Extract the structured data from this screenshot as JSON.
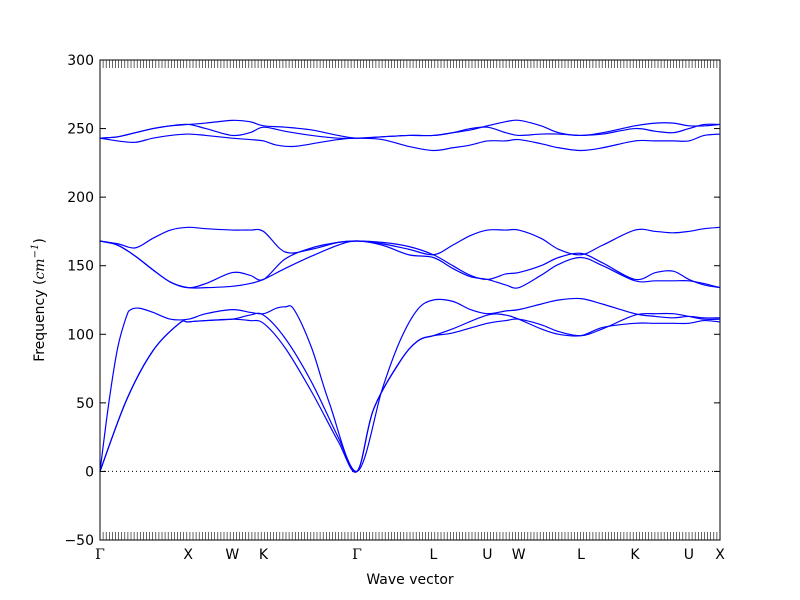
{
  "chart_data": {
    "type": "line",
    "title": "",
    "xlabel": "Wave vector",
    "ylabel": "Frequency (cm⁻¹)",
    "ylabel_main": "Frequency (",
    "ylabel_unit": "cm",
    "ylabel_exp": "−1",
    "ylabel_close": ")",
    "ylim": [
      -50,
      300
    ],
    "yticks": [
      -50,
      0,
      50,
      100,
      150,
      200,
      250,
      300
    ],
    "ytick_labels": [
      "−50",
      "0",
      "50",
      "100",
      "150",
      "200",
      "250",
      "300"
    ],
    "zero_line": true,
    "line_color": "#0000ff",
    "hsym_points": [
      {
        "label": "Γ",
        "x": 0.0
      },
      {
        "label": "X",
        "x": 1.0
      },
      {
        "label": "W",
        "x": 1.5
      },
      {
        "label": "K",
        "x": 1.854
      },
      {
        "label": "Γ",
        "x": 2.914
      },
      {
        "label": "L",
        "x": 3.78
      },
      {
        "label": "U",
        "x": 4.393
      },
      {
        "label": "W",
        "x": 4.747
      },
      {
        "label": "L",
        "x": 5.454
      },
      {
        "label": "K",
        "x": 6.066
      },
      {
        "label": "U",
        "x": 6.677
      },
      {
        "label": "X",
        "x": 7.03
      }
    ],
    "series": [
      {
        "values": [
          [
            0,
            0
          ],
          [
            0.3,
            52
          ],
          [
            0.6,
            88
          ],
          [
            0.9,
            108
          ],
          [
            1.0,
            109
          ],
          [
            1.2,
            110
          ],
          [
            1.5,
            111
          ],
          [
            1.7,
            110
          ],
          [
            1.854,
            108
          ],
          [
            2.1,
            90
          ],
          [
            2.4,
            58
          ],
          [
            2.7,
            22
          ],
          [
            2.914,
            0
          ],
          [
            3.1,
            45
          ],
          [
            3.4,
            80
          ],
          [
            3.6,
            95
          ],
          [
            3.78,
            99
          ],
          [
            4.0,
            101
          ],
          [
            4.393,
            108
          ],
          [
            4.6,
            110
          ],
          [
            4.747,
            111
          ],
          [
            5.0,
            107
          ],
          [
            5.2,
            102
          ],
          [
            5.454,
            99
          ],
          [
            5.7,
            104
          ],
          [
            6.066,
            114
          ],
          [
            6.3,
            115
          ],
          [
            6.5,
            115
          ],
          [
            6.677,
            113
          ],
          [
            6.85,
            111
          ],
          [
            7.03,
            111
          ]
        ]
      },
      {
        "values": [
          [
            0,
            0
          ],
          [
            0.3,
            52
          ],
          [
            0.6,
            88
          ],
          [
            0.9,
            108
          ],
          [
            1.0,
            109
          ],
          [
            1.2,
            110
          ],
          [
            1.5,
            111
          ],
          [
            1.7,
            114
          ],
          [
            1.854,
            114
          ],
          [
            2.1,
            97
          ],
          [
            2.4,
            65
          ],
          [
            2.7,
            25
          ],
          [
            2.914,
            0
          ],
          [
            3.1,
            45
          ],
          [
            3.4,
            80
          ],
          [
            3.6,
            95
          ],
          [
            3.78,
            99
          ],
          [
            4.0,
            104
          ],
          [
            4.393,
            114
          ],
          [
            4.6,
            114
          ],
          [
            4.747,
            111
          ],
          [
            5.0,
            104
          ],
          [
            5.2,
            100
          ],
          [
            5.454,
            99
          ],
          [
            5.7,
            105
          ],
          [
            6.066,
            108
          ],
          [
            6.3,
            108
          ],
          [
            6.5,
            108
          ],
          [
            6.677,
            108
          ],
          [
            6.85,
            110
          ],
          [
            7.03,
            109
          ]
        ]
      },
      {
        "values": [
          [
            0,
            0
          ],
          [
            0.1,
            50
          ],
          [
            0.2,
            90
          ],
          [
            0.3,
            113
          ],
          [
            0.35,
            118
          ],
          [
            0.45,
            119
          ],
          [
            0.6,
            116
          ],
          [
            0.8,
            111
          ],
          [
            1.0,
            111
          ],
          [
            1.2,
            115
          ],
          [
            1.5,
            118
          ],
          [
            1.7,
            116
          ],
          [
            1.854,
            115
          ],
          [
            2.0,
            119
          ],
          [
            2.1,
            120
          ],
          [
            2.2,
            118
          ],
          [
            2.4,
            90
          ],
          [
            2.6,
            50
          ],
          [
            2.914,
            0
          ],
          [
            3.2,
            60
          ],
          [
            3.4,
            95
          ],
          [
            3.6,
            118
          ],
          [
            3.78,
            125
          ],
          [
            4.0,
            124
          ],
          [
            4.2,
            118
          ],
          [
            4.393,
            115
          ],
          [
            4.6,
            117
          ],
          [
            4.747,
            118
          ],
          [
            5.0,
            122
          ],
          [
            5.2,
            125
          ],
          [
            5.454,
            126
          ],
          [
            5.7,
            122
          ],
          [
            6.066,
            115
          ],
          [
            6.3,
            113
          ],
          [
            6.5,
            112
          ],
          [
            6.677,
            113
          ],
          [
            6.85,
            112
          ],
          [
            7.03,
            112
          ]
        ]
      },
      {
        "values": [
          [
            0,
            168
          ],
          [
            0.2,
            166
          ],
          [
            0.4,
            163
          ],
          [
            0.6,
            170
          ],
          [
            0.8,
            176
          ],
          [
            1.0,
            178
          ],
          [
            1.2,
            177
          ],
          [
            1.5,
            176
          ],
          [
            1.7,
            176
          ],
          [
            1.854,
            175
          ],
          [
            2.1,
            160
          ],
          [
            2.4,
            162
          ],
          [
            2.7,
            167
          ],
          [
            2.914,
            168
          ],
          [
            3.2,
            166
          ],
          [
            3.5,
            162
          ],
          [
            3.78,
            158
          ],
          [
            4.0,
            165
          ],
          [
            4.2,
            172
          ],
          [
            4.393,
            176
          ],
          [
            4.6,
            176
          ],
          [
            4.747,
            176
          ],
          [
            5.0,
            170
          ],
          [
            5.2,
            162
          ],
          [
            5.454,
            158
          ],
          [
            5.7,
            165
          ],
          [
            6.066,
            176
          ],
          [
            6.3,
            175
          ],
          [
            6.5,
            174
          ],
          [
            6.677,
            175
          ],
          [
            6.85,
            177
          ],
          [
            7.03,
            178
          ]
        ]
      },
      {
        "values": [
          [
            0,
            168
          ],
          [
            0.2,
            165
          ],
          [
            0.4,
            157
          ],
          [
            0.6,
            147
          ],
          [
            0.8,
            138
          ],
          [
            1.0,
            134
          ],
          [
            1.2,
            137
          ],
          [
            1.5,
            145
          ],
          [
            1.7,
            143
          ],
          [
            1.854,
            140
          ],
          [
            2.1,
            155
          ],
          [
            2.4,
            163
          ],
          [
            2.7,
            167
          ],
          [
            2.914,
            168
          ],
          [
            3.2,
            167
          ],
          [
            3.5,
            164
          ],
          [
            3.78,
            158
          ],
          [
            4.0,
            150
          ],
          [
            4.2,
            143
          ],
          [
            4.393,
            140
          ],
          [
            4.6,
            144
          ],
          [
            4.747,
            145
          ],
          [
            5.0,
            150
          ],
          [
            5.2,
            156
          ],
          [
            5.454,
            159
          ],
          [
            5.7,
            152
          ],
          [
            6.066,
            140
          ],
          [
            6.3,
            145
          ],
          [
            6.5,
            146
          ],
          [
            6.677,
            140
          ],
          [
            6.85,
            136
          ],
          [
            7.03,
            134
          ]
        ]
      },
      {
        "values": [
          [
            0,
            168
          ],
          [
            0.2,
            165
          ],
          [
            0.4,
            157
          ],
          [
            0.6,
            147
          ],
          [
            0.8,
            138
          ],
          [
            1.0,
            134
          ],
          [
            1.2,
            134
          ],
          [
            1.5,
            135
          ],
          [
            1.7,
            137
          ],
          [
            1.854,
            140
          ],
          [
            2.1,
            148
          ],
          [
            2.4,
            157
          ],
          [
            2.7,
            165
          ],
          [
            2.914,
            168
          ],
          [
            3.2,
            165
          ],
          [
            3.5,
            158
          ],
          [
            3.78,
            156
          ],
          [
            4.0,
            148
          ],
          [
            4.2,
            142
          ],
          [
            4.393,
            140
          ],
          [
            4.6,
            136
          ],
          [
            4.747,
            134
          ],
          [
            5.0,
            143
          ],
          [
            5.2,
            151
          ],
          [
            5.454,
            156
          ],
          [
            5.7,
            150
          ],
          [
            6.066,
            139
          ],
          [
            6.3,
            139
          ],
          [
            6.5,
            139
          ],
          [
            6.677,
            139
          ],
          [
            6.85,
            137
          ],
          [
            7.03,
            134
          ]
        ]
      },
      {
        "values": [
          [
            0,
            243
          ],
          [
            0.2,
            241
          ],
          [
            0.4,
            240
          ],
          [
            0.6,
            243
          ],
          [
            0.8,
            245
          ],
          [
            1.0,
            246
          ],
          [
            1.2,
            245
          ],
          [
            1.5,
            243
          ],
          [
            1.7,
            242
          ],
          [
            1.854,
            241
          ],
          [
            2.0,
            238
          ],
          [
            2.2,
            237
          ],
          [
            2.5,
            240
          ],
          [
            2.7,
            242
          ],
          [
            2.914,
            243
          ],
          [
            3.2,
            242
          ],
          [
            3.5,
            237
          ],
          [
            3.78,
            234
          ],
          [
            4.0,
            236
          ],
          [
            4.2,
            238
          ],
          [
            4.393,
            241
          ],
          [
            4.6,
            241
          ],
          [
            4.747,
            242
          ],
          [
            5.0,
            239
          ],
          [
            5.2,
            236
          ],
          [
            5.454,
            234
          ],
          [
            5.7,
            236
          ],
          [
            6.066,
            241
          ],
          [
            6.3,
            241
          ],
          [
            6.5,
            241
          ],
          [
            6.677,
            241
          ],
          [
            6.85,
            245
          ],
          [
            7.03,
            246
          ]
        ]
      },
      {
        "values": [
          [
            0,
            243
          ],
          [
            0.2,
            244
          ],
          [
            0.4,
            247
          ],
          [
            0.6,
            250
          ],
          [
            0.8,
            252
          ],
          [
            1.0,
            253
          ],
          [
            1.2,
            250
          ],
          [
            1.5,
            245
          ],
          [
            1.7,
            247
          ],
          [
            1.854,
            251
          ],
          [
            2.1,
            248
          ],
          [
            2.4,
            245
          ],
          [
            2.7,
            243
          ],
          [
            2.914,
            243
          ],
          [
            3.2,
            244
          ],
          [
            3.5,
            245
          ],
          [
            3.78,
            245
          ],
          [
            4.0,
            247
          ],
          [
            4.2,
            250
          ],
          [
            4.393,
            251
          ],
          [
            4.6,
            247
          ],
          [
            4.747,
            245
          ],
          [
            5.0,
            246
          ],
          [
            5.2,
            246
          ],
          [
            5.454,
            245
          ],
          [
            5.7,
            246
          ],
          [
            6.066,
            250
          ],
          [
            6.3,
            248
          ],
          [
            6.5,
            247
          ],
          [
            6.677,
            250
          ],
          [
            6.85,
            253
          ],
          [
            7.03,
            253
          ]
        ]
      },
      {
        "values": [
          [
            0,
            243
          ],
          [
            0.2,
            244
          ],
          [
            0.4,
            247
          ],
          [
            0.6,
            250
          ],
          [
            0.8,
            252
          ],
          [
            1.0,
            253
          ],
          [
            1.2,
            254
          ],
          [
            1.5,
            256
          ],
          [
            1.7,
            255
          ],
          [
            1.854,
            252
          ],
          [
            2.1,
            251
          ],
          [
            2.4,
            249
          ],
          [
            2.7,
            245
          ],
          [
            2.914,
            243
          ],
          [
            3.2,
            244
          ],
          [
            3.5,
            245
          ],
          [
            3.78,
            245
          ],
          [
            4.0,
            247
          ],
          [
            4.2,
            249
          ],
          [
            4.393,
            252
          ],
          [
            4.6,
            255
          ],
          [
            4.747,
            256
          ],
          [
            5.0,
            252
          ],
          [
            5.2,
            247
          ],
          [
            5.454,
            245
          ],
          [
            5.7,
            247
          ],
          [
            6.066,
            252
          ],
          [
            6.3,
            254
          ],
          [
            6.5,
            254
          ],
          [
            6.677,
            252
          ],
          [
            6.85,
            252
          ],
          [
            7.03,
            253
          ]
        ]
      }
    ]
  }
}
